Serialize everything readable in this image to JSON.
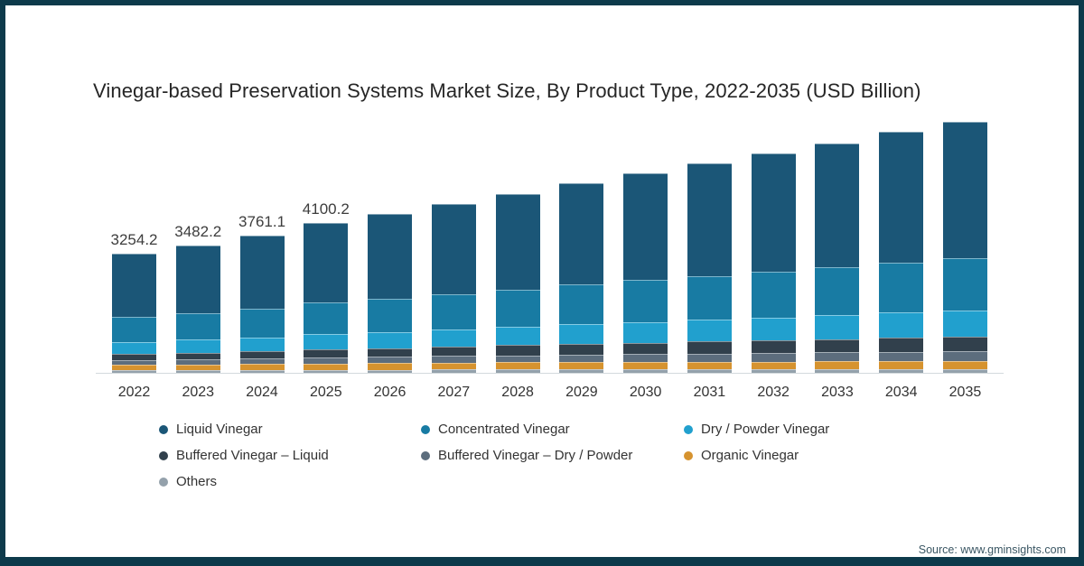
{
  "frame": {
    "border_color": "#0d3a4b",
    "background": "#ffffff"
  },
  "title": "Vinegar-based Preservation Systems Market Size, By Product Type, 2022-2035 (USD Billion)",
  "source": "Source: www.gminsights.com",
  "chart_data": {
    "type": "bar",
    "stacked": true,
    "title": "Vinegar-based Preservation Systems Market Size, By Product Type, 2022-2035 (USD Billion)",
    "unit": "USD Billion",
    "categories": [
      "2022",
      "2023",
      "2024",
      "2025",
      "2026",
      "2027",
      "2028",
      "2029",
      "2030",
      "2031",
      "2032",
      "2033",
      "2034",
      "2035"
    ],
    "series": [
      {
        "name": "Liquid Vinegar",
        "color": "#1b5677",
        "values": [
          1710,
          1835,
          1985,
          2170,
          2300,
          2445,
          2600,
          2760,
          2915,
          3070,
          3220,
          3370,
          3540,
          3700
        ]
      },
      {
        "name": "Concentrated Vinegar",
        "color": "#187ba3",
        "values": [
          680,
          725,
          785,
          855,
          905,
          960,
          1015,
          1075,
          1135,
          1190,
          1245,
          1300,
          1360,
          1420
        ]
      },
      {
        "name": "Dry / Powder Vinegar",
        "color": "#21a0ce",
        "values": [
          325,
          350,
          380,
          415,
          440,
          470,
          500,
          530,
          565,
          595,
          625,
          655,
          690,
          720
        ]
      },
      {
        "name": "Buffered Vinegar – Liquid",
        "color": "#31404c",
        "values": [
          175,
          190,
          205,
          225,
          240,
          255,
          275,
          290,
          310,
          325,
          345,
          360,
          380,
          400
        ]
      },
      {
        "name": "Buffered Vinegar – Dry / Powder",
        "color": "#5c6d7d",
        "values": [
          125,
          135,
          145,
          160,
          170,
          180,
          190,
          205,
          215,
          225,
          240,
          250,
          265,
          275
        ]
      },
      {
        "name": "Organic Vinegar",
        "color": "#d6932f",
        "values": [
          150,
          155,
          160,
          170,
          175,
          185,
          190,
          190,
          195,
          195,
          200,
          200,
          200,
          200
        ]
      },
      {
        "name": "Others",
        "color": "#94a1ab",
        "values": [
          89.2,
          92.2,
          101.1,
          105.2,
          110,
          115,
          120,
          130,
          125,
          130,
          125,
          135,
          135,
          135
        ]
      }
    ],
    "totals": [
      3254.2,
      3482.2,
      3761.1,
      4100.2,
      4340,
      4610,
      4890,
      5180,
      5460,
      5730,
      6000,
      6270,
      6570,
      6850
    ],
    "bar_labels": [
      "3254.2",
      "3482.2",
      "3761.1",
      "4100.2",
      "",
      "",
      "",
      "",
      "",
      "",
      "",
      "",
      "",
      ""
    ],
    "stack_order": "series listed top-to-bottom; Others at bottom of each bar",
    "ylim": [
      0,
      7020
    ],
    "gridlines": false,
    "legend_position": "bottom",
    "legend_columns": 3
  }
}
